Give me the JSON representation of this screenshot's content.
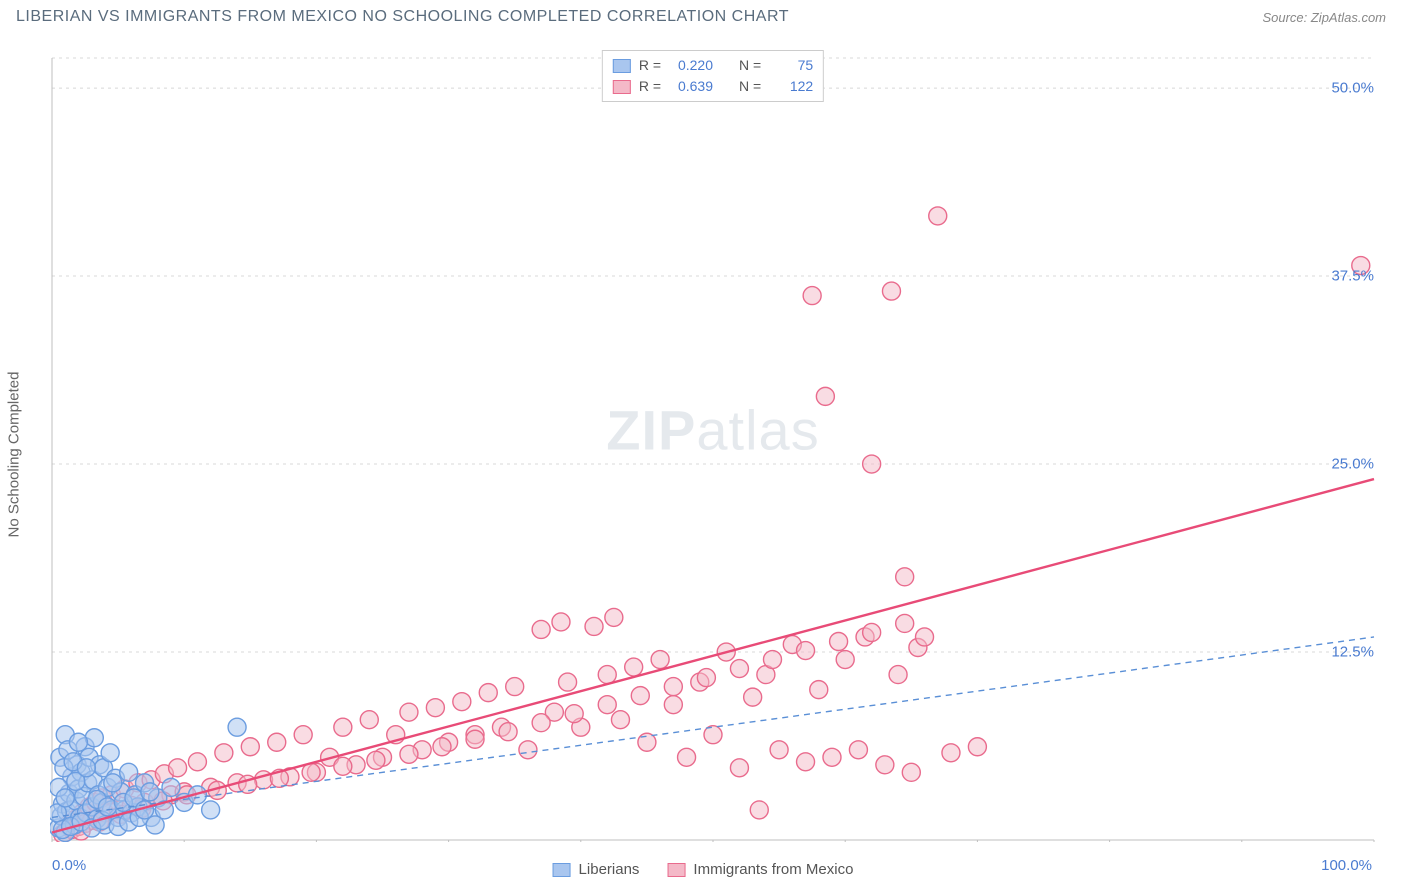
{
  "title": "LIBERIAN VS IMMIGRANTS FROM MEXICO NO SCHOOLING COMPLETED CORRELATION CHART",
  "source": "Source: ZipAtlas.com",
  "ylabel": "No Schooling Completed",
  "watermark_a": "ZIP",
  "watermark_b": "atlas",
  "chart": {
    "type": "scatter",
    "xlim": [
      0,
      100
    ],
    "ylim": [
      0,
      52
    ],
    "x_ticks": [
      0,
      10,
      20,
      30,
      40,
      50,
      60,
      70,
      80,
      90,
      100
    ],
    "y_ticks": [
      12.5,
      25.0,
      37.5,
      50.0
    ],
    "y_tick_labels": [
      "12.5%",
      "25.0%",
      "37.5%",
      "50.0%"
    ],
    "x_min_label": "0.0%",
    "x_max_label": "100.0%",
    "grid_color": "#d8d8d8",
    "axis_color": "#bfbfbf",
    "background_color": "#ffffff",
    "marker_radius": 9,
    "marker_stroke_width": 1.4,
    "series": [
      {
        "name": "Liberians",
        "fill": "#a9c6ef",
        "fill_opacity": 0.55,
        "stroke": "#6b9de0",
        "trend": {
          "style": "dashed",
          "color": "#5a8fd6",
          "width": 1.4,
          "y_at_0": 1.5,
          "y_at_100": 13.5
        },
        "R": "0.220",
        "N": "75",
        "points": [
          [
            0.5,
            0.8
          ],
          [
            0.7,
            1.6
          ],
          [
            0.8,
            2.4
          ],
          [
            1.0,
            0.5
          ],
          [
            1.1,
            1.9
          ],
          [
            1.3,
            3.1
          ],
          [
            1.4,
            2.0
          ],
          [
            1.5,
            4.2
          ],
          [
            1.7,
            1.0
          ],
          [
            1.8,
            2.6
          ],
          [
            1.9,
            5.0
          ],
          [
            2.0,
            3.4
          ],
          [
            2.1,
            1.5
          ],
          [
            2.2,
            4.5
          ],
          [
            2.4,
            2.9
          ],
          [
            2.5,
            6.2
          ],
          [
            2.6,
            1.8
          ],
          [
            2.7,
            3.8
          ],
          [
            2.8,
            5.5
          ],
          [
            3.0,
            2.2
          ],
          [
            3.1,
            4.0
          ],
          [
            3.2,
            6.8
          ],
          [
            3.4,
            1.4
          ],
          [
            3.5,
            3.0
          ],
          [
            3.6,
            5.0
          ],
          [
            3.8,
            2.5
          ],
          [
            3.9,
            4.8
          ],
          [
            4.0,
            1.0
          ],
          [
            4.2,
            3.5
          ],
          [
            4.4,
            5.8
          ],
          [
            4.5,
            2.0
          ],
          [
            4.8,
            4.1
          ],
          [
            5.0,
            1.5
          ],
          [
            5.2,
            3.2
          ],
          [
            5.5,
            2.0
          ],
          [
            5.8,
            4.5
          ],
          [
            6.0,
            1.8
          ],
          [
            6.3,
            3.0
          ],
          [
            6.5,
            2.2
          ],
          [
            7.0,
            3.8
          ],
          [
            7.5,
            1.5
          ],
          [
            8.0,
            2.8
          ],
          [
            8.5,
            2.0
          ],
          [
            9.0,
            3.5
          ],
          [
            10.0,
            2.5
          ],
          [
            11.0,
            3.0
          ],
          [
            12.0,
            2.0
          ],
          [
            14.0,
            7.5
          ],
          [
            1.0,
            7.0
          ],
          [
            0.6,
            5.5
          ],
          [
            0.9,
            4.8
          ],
          [
            1.2,
            6.0
          ],
          [
            1.6,
            5.2
          ],
          [
            2.0,
            6.5
          ],
          [
            0.4,
            1.8
          ],
          [
            0.5,
            3.5
          ],
          [
            0.8,
            0.7
          ],
          [
            1.0,
            2.8
          ],
          [
            1.4,
            0.9
          ],
          [
            1.8,
            3.9
          ],
          [
            2.2,
            1.2
          ],
          [
            2.6,
            4.8
          ],
          [
            3.0,
            0.8
          ],
          [
            3.4,
            2.7
          ],
          [
            3.8,
            1.3
          ],
          [
            4.2,
            2.2
          ],
          [
            4.6,
            3.8
          ],
          [
            5.0,
            0.9
          ],
          [
            5.4,
            2.5
          ],
          [
            5.8,
            1.2
          ],
          [
            6.2,
            2.8
          ],
          [
            6.6,
            1.5
          ],
          [
            7.0,
            2.0
          ],
          [
            7.4,
            3.2
          ],
          [
            7.8,
            1.0
          ]
        ]
      },
      {
        "name": "Immigrants from Mexico",
        "fill": "#f4b9c8",
        "fill_opacity": 0.5,
        "stroke": "#e96b8d",
        "trend": {
          "style": "solid",
          "color": "#e84b77",
          "width": 2.4,
          "y_at_0": 0.5,
          "y_at_100": 24.0
        },
        "R": "0.639",
        "N": "122",
        "points": [
          [
            0.8,
            0.4
          ],
          [
            1.2,
            1.0
          ],
          [
            1.5,
            0.7
          ],
          [
            1.8,
            1.4
          ],
          [
            2.0,
            0.9
          ],
          [
            2.3,
            1.8
          ],
          [
            2.5,
            1.1
          ],
          [
            2.8,
            2.2
          ],
          [
            3.0,
            1.3
          ],
          [
            3.3,
            2.5
          ],
          [
            3.5,
            1.5
          ],
          [
            3.8,
            2.8
          ],
          [
            4.0,
            1.8
          ],
          [
            4.5,
            3.0
          ],
          [
            5.0,
            2.0
          ],
          [
            5.5,
            3.4
          ],
          [
            6.0,
            2.3
          ],
          [
            6.5,
            3.8
          ],
          [
            7.0,
            2.5
          ],
          [
            7.5,
            4.0
          ],
          [
            8.0,
            2.8
          ],
          [
            8.5,
            4.4
          ],
          [
            9.0,
            3.0
          ],
          [
            9.5,
            4.8
          ],
          [
            10.0,
            3.2
          ],
          [
            11.0,
            5.2
          ],
          [
            12.0,
            3.5
          ],
          [
            13.0,
            5.8
          ],
          [
            14.0,
            3.8
          ],
          [
            15.0,
            6.2
          ],
          [
            16.0,
            4.0
          ],
          [
            17.0,
            6.5
          ],
          [
            18.0,
            4.2
          ],
          [
            19.0,
            7.0
          ],
          [
            20.0,
            4.5
          ],
          [
            21.0,
            5.5
          ],
          [
            22.0,
            7.5
          ],
          [
            23.0,
            5.0
          ],
          [
            24.0,
            8.0
          ],
          [
            25.0,
            5.5
          ],
          [
            26.0,
            7.0
          ],
          [
            27.0,
            8.5
          ],
          [
            28.0,
            6.0
          ],
          [
            29.0,
            8.8
          ],
          [
            30.0,
            6.5
          ],
          [
            31.0,
            9.2
          ],
          [
            32.0,
            7.0
          ],
          [
            33.0,
            9.8
          ],
          [
            34.0,
            7.5
          ],
          [
            35.0,
            10.2
          ],
          [
            36.0,
            6.0
          ],
          [
            37.0,
            14.0
          ],
          [
            38.0,
            8.5
          ],
          [
            38.5,
            14.5
          ],
          [
            39.0,
            10.5
          ],
          [
            40.0,
            7.5
          ],
          [
            41.0,
            14.2
          ],
          [
            42.0,
            11.0
          ],
          [
            42.5,
            14.8
          ],
          [
            43.0,
            8.0
          ],
          [
            44.0,
            11.5
          ],
          [
            45.0,
            6.5
          ],
          [
            46.0,
            12.0
          ],
          [
            47.0,
            9.0
          ],
          [
            48.0,
            5.5
          ],
          [
            49.0,
            10.5
          ],
          [
            50.0,
            7.0
          ],
          [
            51.0,
            12.5
          ],
          [
            52.0,
            4.8
          ],
          [
            53.0,
            9.5
          ],
          [
            53.5,
            2.0
          ],
          [
            54.0,
            11.0
          ],
          [
            55.0,
            6.0
          ],
          [
            56.0,
            13.0
          ],
          [
            57.0,
            5.2
          ],
          [
            57.5,
            36.2
          ],
          [
            58.0,
            10.0
          ],
          [
            58.5,
            29.5
          ],
          [
            59.0,
            5.5
          ],
          [
            60.0,
            12.0
          ],
          [
            61.0,
            6.0
          ],
          [
            61.5,
            13.5
          ],
          [
            62.0,
            25.0
          ],
          [
            63.0,
            5.0
          ],
          [
            63.5,
            36.5
          ],
          [
            64.0,
            11.0
          ],
          [
            64.5,
            17.5
          ],
          [
            65.0,
            4.5
          ],
          [
            65.5,
            12.8
          ],
          [
            66.0,
            13.5
          ],
          [
            67.0,
            41.5
          ],
          [
            68.0,
            5.8
          ],
          [
            70.0,
            6.2
          ],
          [
            99.0,
            38.2
          ],
          [
            2.2,
            0.6
          ],
          [
            3.6,
            1.2
          ],
          [
            5.2,
            1.7
          ],
          [
            6.8,
            2.1
          ],
          [
            8.4,
            2.6
          ],
          [
            10.2,
            3.0
          ],
          [
            12.5,
            3.3
          ],
          [
            14.8,
            3.7
          ],
          [
            17.2,
            4.1
          ],
          [
            19.6,
            4.5
          ],
          [
            22.0,
            4.9
          ],
          [
            24.5,
            5.3
          ],
          [
            27.0,
            5.7
          ],
          [
            29.5,
            6.2
          ],
          [
            32.0,
            6.7
          ],
          [
            34.5,
            7.2
          ],
          [
            37.0,
            7.8
          ],
          [
            39.5,
            8.4
          ],
          [
            42.0,
            9.0
          ],
          [
            44.5,
            9.6
          ],
          [
            47.0,
            10.2
          ],
          [
            49.5,
            10.8
          ],
          [
            52.0,
            11.4
          ],
          [
            54.5,
            12.0
          ],
          [
            57.0,
            12.6
          ],
          [
            59.5,
            13.2
          ],
          [
            62.0,
            13.8
          ],
          [
            64.5,
            14.4
          ]
        ]
      }
    ]
  },
  "stats_box": {
    "r_label": "R =",
    "n_label": "N ="
  },
  "bottom_legend": {
    "series1": "Liberians",
    "series2": "Immigrants from Mexico"
  }
}
